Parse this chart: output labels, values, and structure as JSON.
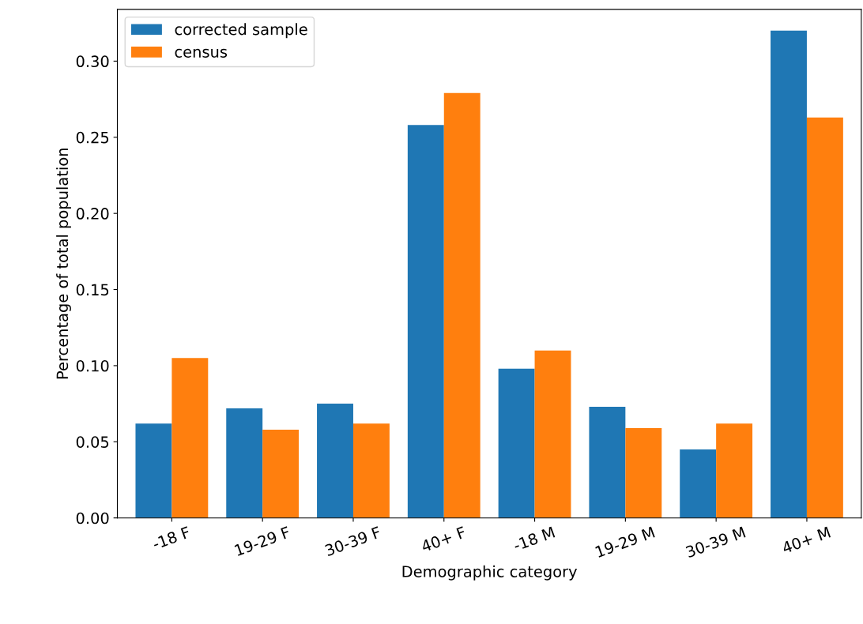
{
  "chart_data": {
    "type": "bar",
    "xlabel": "Demographic category",
    "ylabel": "Percentage of total population",
    "categories": [
      "-18 F",
      "19-29 F",
      "30-39 F",
      "40+ F",
      "-18 M",
      "19-29 M",
      "30-39 M",
      "40+ M"
    ],
    "series": [
      {
        "name": "corrected sample",
        "color": "#1f77b4",
        "values": [
          0.062,
          0.072,
          0.075,
          0.258,
          0.098,
          0.073,
          0.045,
          0.32
        ]
      },
      {
        "name": "census",
        "color": "#ff7f0e",
        "values": [
          0.105,
          0.058,
          0.062,
          0.279,
          0.11,
          0.059,
          0.062,
          0.263
        ]
      }
    ],
    "ylim": [
      0,
      0.334
    ],
    "yticks": [
      {
        "value": 0,
        "label": "0.00"
      },
      {
        "value": 0.05,
        "label": "0.05"
      },
      {
        "value": 0.1,
        "label": "0.10"
      },
      {
        "value": 0.15,
        "label": "0.15"
      },
      {
        "value": 0.2,
        "label": "0.20"
      },
      {
        "value": 0.25,
        "label": "0.25"
      },
      {
        "value": 0.3,
        "label": "0.30"
      }
    ],
    "grid": false,
    "legend": "top left"
  }
}
